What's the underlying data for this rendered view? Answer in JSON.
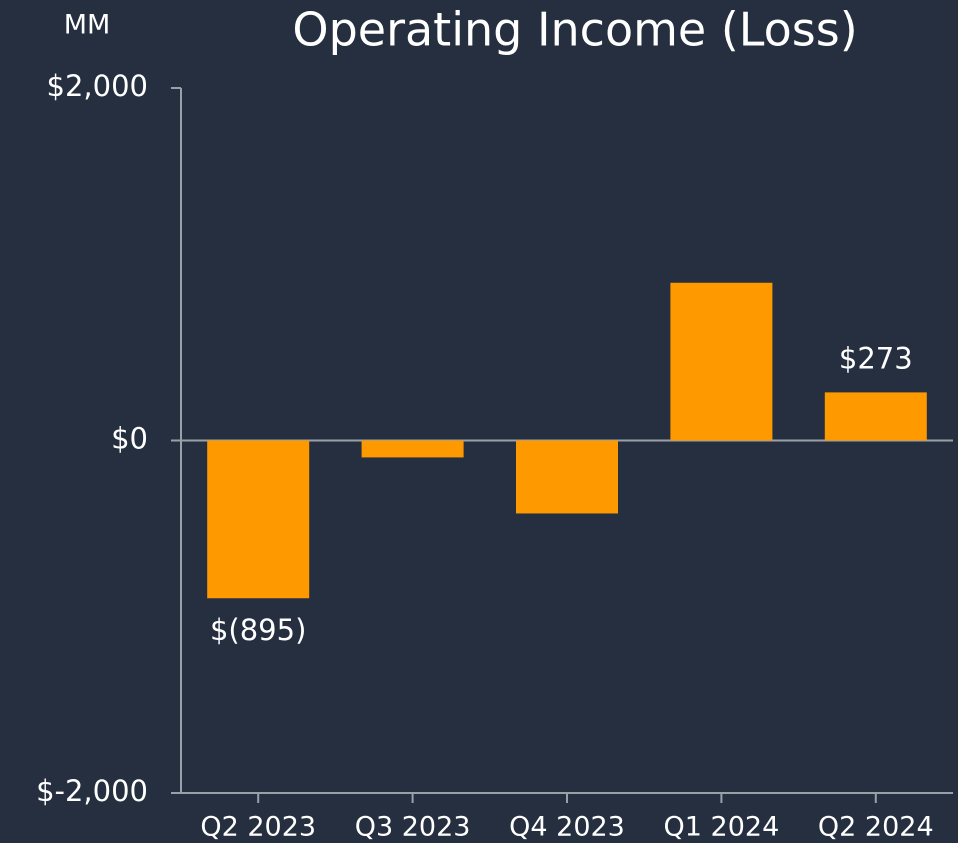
{
  "chart_data": {
    "type": "bar",
    "title": "Operating Income (Loss)",
    "unit_label": "MM",
    "categories": [
      "Q2 2023",
      "Q3 2023",
      "Q4 2023",
      "Q1 2024",
      "Q2 2024"
    ],
    "values": [
      -895,
      -96,
      -414,
      895,
      273
    ],
    "value_labels": [
      "$(895)",
      null,
      null,
      null,
      "$273"
    ],
    "color": "#ff9900",
    "ylim": [
      -2000,
      2000
    ],
    "yticks": [
      {
        "value": -2000,
        "label": "$-2,000"
      },
      {
        "value": 0,
        "label": "$0"
      },
      {
        "value": 2000,
        "label": "$2,000"
      }
    ]
  }
}
